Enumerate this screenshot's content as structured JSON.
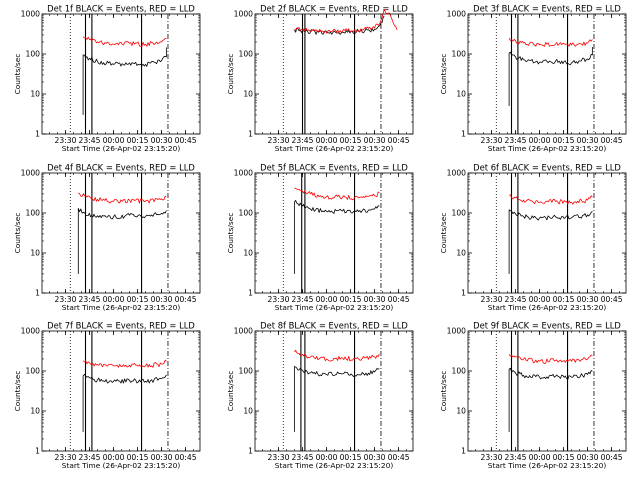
{
  "figure": {
    "colors": {
      "events": "#000000",
      "lld": "#ff0000",
      "axes": "#000000",
      "background": "#ffffff"
    },
    "y_axis": {
      "label": "Counts/sec",
      "scale": "log",
      "range": [
        1,
        1000
      ],
      "tick_labels": [
        "1",
        "10",
        "100",
        "1000"
      ]
    },
    "x_axis": {
      "label": "Start Time (26-Apr-02 23:15:20)",
      "tick_labels": [
        "23:30",
        "23:45",
        "00:00",
        "00:15",
        "00:30",
        "00:45"
      ]
    }
  },
  "chart_data": [
    {
      "type": "line",
      "title": "Det 1f BLACK = Events, RED = LLD",
      "xlabel": "Start Time (26-Apr-02 23:15:20)",
      "ylabel": "Counts/sec",
      "xlim": [
        "23:15:20",
        "00:54:00"
      ],
      "ylim": [
        1,
        1000
      ],
      "yscale": "log",
      "series": [
        {
          "name": "Events",
          "color": "#000000",
          "points": [
            [
              "23:41:00",
              3
            ],
            [
              "23:41:00",
              95
            ],
            [
              "23:45:00",
              78
            ],
            [
              "23:50:00",
              65
            ],
            [
              "00:00:00",
              55
            ],
            [
              "00:10:00",
              60
            ],
            [
              "00:20:00",
              55
            ],
            [
              "00:30:00",
              68
            ],
            [
              "00:33:00",
              85
            ],
            [
              "00:33:00",
              145
            ]
          ]
        },
        {
          "name": "LLD",
          "color": "#ff0000",
          "points": [
            [
              "23:41:00",
              270
            ],
            [
              "23:45:00",
              230
            ],
            [
              "23:50:00",
              200
            ],
            [
              "00:00:00",
              175
            ],
            [
              "00:10:00",
              185
            ],
            [
              "00:20:00",
              175
            ],
            [
              "00:30:00",
              200
            ],
            [
              "00:33:00",
              240
            ]
          ]
        }
      ],
      "vertical_markers": {
        "dotted": [
          "23:33:00"
        ],
        "solid": [
          "23:42:30",
          "23:46:30",
          "00:17:30"
        ],
        "dash_dot": [
          "00:34:00"
        ]
      }
    },
    {
      "type": "line",
      "title": "Det 2f BLACK = Events, RED = LLD",
      "xlabel": "Start Time (26-Apr-02 23:15:20)",
      "ylabel": "Counts/sec",
      "xlim": [
        "23:15:20",
        "00:54:00"
      ],
      "ylim": [
        1,
        1000
      ],
      "yscale": "log",
      "series": [
        {
          "name": "Events",
          "color": "#000000",
          "points": [
            [
              "23:40:00",
              400
            ],
            [
              "23:45:00",
              380
            ],
            [
              "23:55:00",
              350
            ],
            [
              "00:10:00",
              355
            ],
            [
              "00:20:00",
              370
            ],
            [
              "00:30:00",
              420
            ],
            [
              "00:34:00",
              600
            ],
            [
              "00:36:00",
              900
            ]
          ]
        },
        {
          "name": "LLD",
          "color": "#ff0000",
          "points": [
            [
              "23:40:00",
              420
            ],
            [
              "23:45:00",
              400
            ],
            [
              "23:55:00",
              370
            ],
            [
              "00:10:00",
              375
            ],
            [
              "00:20:00",
              390
            ],
            [
              "00:30:00",
              450
            ],
            [
              "00:34:00",
              700
            ],
            [
              "00:36:00",
              1300
            ],
            [
              "00:40:00",
              900
            ],
            [
              "00:44:00",
              400
            ]
          ]
        }
      ],
      "vertical_markers": {
        "dotted": [
          "23:33:00"
        ],
        "solid": [
          "23:45:00",
          "23:46:30",
          "00:17:30"
        ],
        "dash_dot": [
          "00:34:00"
        ]
      }
    },
    {
      "type": "line",
      "title": "Det 3f BLACK = Events, RED = LLD",
      "xlabel": "Start Time (26-Apr-02 23:15:20)",
      "ylabel": "Counts/sec",
      "xlim": [
        "23:15:20",
        "00:54:00"
      ],
      "ylim": [
        1,
        1000
      ],
      "yscale": "log",
      "series": [
        {
          "name": "Events",
          "color": "#000000",
          "points": [
            [
              "23:41:00",
              5
            ],
            [
              "23:41:00",
              105
            ],
            [
              "23:45:00",
              85
            ],
            [
              "23:50:00",
              72
            ],
            [
              "00:00:00",
              62
            ],
            [
              "00:10:00",
              66
            ],
            [
              "00:20:00",
              60
            ],
            [
              "00:30:00",
              75
            ],
            [
              "00:33:00",
              95
            ],
            [
              "00:33:00",
              150
            ]
          ]
        },
        {
          "name": "LLD",
          "color": "#ff0000",
          "points": [
            [
              "23:41:00",
              250
            ],
            [
              "23:45:00",
              215
            ],
            [
              "23:50:00",
              190
            ],
            [
              "00:00:00",
              170
            ],
            [
              "00:10:00",
              178
            ],
            [
              "00:20:00",
              168
            ],
            [
              "00:30:00",
              190
            ],
            [
              "00:33:00",
              230
            ]
          ]
        }
      ],
      "vertical_markers": {
        "dotted": [
          "23:33:00"
        ],
        "solid": [
          "23:42:30",
          "23:46:30",
          "00:17:30"
        ],
        "dash_dot": [
          "00:34:00"
        ]
      }
    },
    {
      "type": "line",
      "title": "Det 4f BLACK = Events, RED = LLD",
      "xlabel": "Start Time (26-Apr-02 23:15:20)",
      "ylabel": "Counts/sec",
      "xlim": [
        "23:15:20",
        "00:54:00"
      ],
      "ylim": [
        1,
        1000
      ],
      "yscale": "log",
      "series": [
        {
          "name": "Events",
          "color": "#000000",
          "points": [
            [
              "23:38:00",
              3
            ],
            [
              "23:38:00",
              130
            ],
            [
              "23:42:00",
              100
            ],
            [
              "23:50:00",
              85
            ],
            [
              "00:00:00",
              80
            ],
            [
              "00:10:00",
              88
            ],
            [
              "00:20:00",
              82
            ],
            [
              "00:30:00",
              98
            ],
            [
              "00:33:00",
              115
            ]
          ]
        },
        {
          "name": "LLD",
          "color": "#ff0000",
          "points": [
            [
              "23:38:00",
              320
            ],
            [
              "23:42:00",
              270
            ],
            [
              "23:50:00",
              220
            ],
            [
              "00:00:00",
              195
            ],
            [
              "00:10:00",
              210
            ],
            [
              "00:20:00",
              198
            ],
            [
              "00:30:00",
              225
            ],
            [
              "00:33:00",
              260
            ]
          ]
        }
      ],
      "vertical_markers": {
        "dotted": [
          "23:33:00"
        ],
        "solid": [
          "23:42:30",
          "23:46:30",
          "00:17:30"
        ],
        "dash_dot": [
          "00:34:00"
        ]
      }
    },
    {
      "type": "line",
      "title": "Det 5f BLACK = Events, RED = LLD",
      "xlabel": "Start Time (26-Apr-02 23:15:20)",
      "ylabel": "Counts/sec",
      "xlim": [
        "23:15:20",
        "00:54:00"
      ],
      "ylim": [
        1,
        1000
      ],
      "yscale": "log",
      "series": [
        {
          "name": "Events",
          "color": "#000000",
          "points": [
            [
              "23:40:00",
              3
            ],
            [
              "23:40:00",
              190
            ],
            [
              "23:45:00",
              150
            ],
            [
              "23:50:00",
              125
            ],
            [
              "00:00:00",
              110
            ],
            [
              "00:10:00",
              112
            ],
            [
              "00:20:00",
              108
            ],
            [
              "00:30:00",
              125
            ],
            [
              "00:33:00",
              150
            ]
          ]
        },
        {
          "name": "LLD",
          "color": "#ff0000",
          "points": [
            [
              "23:40:00",
              420
            ],
            [
              "23:45:00",
              350
            ],
            [
              "23:50:00",
              300
            ],
            [
              "00:00:00",
              255
            ],
            [
              "00:10:00",
              250
            ],
            [
              "00:20:00",
              240
            ],
            [
              "00:30:00",
              270
            ],
            [
              "00:33:00",
              320
            ]
          ]
        }
      ],
      "vertical_markers": {
        "dotted": [
          "23:33:00"
        ],
        "solid": [
          "23:44:30",
          "23:46:30",
          "00:17:30"
        ],
        "dash_dot": [
          "00:34:00"
        ]
      }
    },
    {
      "type": "line",
      "title": "Det 6f BLACK = Events, RED = LLD",
      "xlabel": "Start Time (26-Apr-02 23:15:20)",
      "ylabel": "Counts/sec",
      "xlim": [
        "23:15:20",
        "00:54:00"
      ],
      "ylim": [
        1,
        1000
      ],
      "yscale": "log",
      "series": [
        {
          "name": "Events",
          "color": "#000000",
          "points": [
            [
              "23:41:00",
              3
            ],
            [
              "23:41:00",
              120
            ],
            [
              "23:45:00",
              95
            ],
            [
              "23:50:00",
              82
            ],
            [
              "00:00:00",
              75
            ],
            [
              "00:10:00",
              80
            ],
            [
              "00:20:00",
              76
            ],
            [
              "00:30:00",
              90
            ],
            [
              "00:33:00",
              110
            ]
          ]
        },
        {
          "name": "LLD",
          "color": "#ff0000",
          "points": [
            [
              "23:41:00",
              280
            ],
            [
              "23:45:00",
              240
            ],
            [
              "23:50:00",
              210
            ],
            [
              "00:00:00",
              185
            ],
            [
              "00:10:00",
              195
            ],
            [
              "00:20:00",
              185
            ],
            [
              "00:30:00",
              210
            ],
            [
              "00:33:00",
              250
            ]
          ]
        }
      ],
      "vertical_markers": {
        "dotted": [
          "23:33:00"
        ],
        "solid": [
          "23:42:30",
          "23:46:30",
          "00:17:30"
        ],
        "dash_dot": [
          "00:34:00"
        ]
      }
    },
    {
      "type": "line",
      "title": "Det 7f BLACK = Events, RED = LLD",
      "xlabel": "Start Time (26-Apr-02 23:15:20)",
      "ylabel": "Counts/sec",
      "xlim": [
        "23:15:20",
        "00:54:00"
      ],
      "ylim": [
        1,
        1000
      ],
      "yscale": "log",
      "series": [
        {
          "name": "Events",
          "color": "#000000",
          "points": [
            [
              "23:41:00",
              3
            ],
            [
              "23:41:00",
              75
            ],
            [
              "23:45:00",
              68
            ],
            [
              "23:50:00",
              60
            ],
            [
              "00:00:00",
              55
            ],
            [
              "00:10:00",
              58
            ],
            [
              "00:20:00",
              55
            ],
            [
              "00:30:00",
              65
            ],
            [
              "00:33:00",
              80
            ]
          ]
        },
        {
          "name": "LLD",
          "color": "#ff0000",
          "points": [
            [
              "23:41:00",
              180
            ],
            [
              "23:45:00",
              160
            ],
            [
              "23:50:00",
              145
            ],
            [
              "00:00:00",
              135
            ],
            [
              "00:10:00",
              140
            ],
            [
              "00:20:00",
              135
            ],
            [
              "00:30:00",
              150
            ],
            [
              "00:33:00",
              175
            ]
          ]
        }
      ],
      "vertical_markers": {
        "dotted": [
          "23:33:00"
        ],
        "solid": [
          "23:42:30",
          "23:46:30",
          "00:17:30"
        ],
        "dash_dot": [
          "00:34:00"
        ]
      }
    },
    {
      "type": "line",
      "title": "Det 8f BLACK = Events, RED = LLD",
      "xlabel": "Start Time (26-Apr-02 23:15:20)",
      "ylabel": "Counts/sec",
      "xlim": [
        "23:15:20",
        "00:54:00"
      ],
      "ylim": [
        1,
        1000
      ],
      "yscale": "log",
      "series": [
        {
          "name": "Events",
          "color": "#000000",
          "points": [
            [
              "23:40:00",
              3
            ],
            [
              "23:40:00",
              130
            ],
            [
              "23:45:00",
              105
            ],
            [
              "23:50:00",
              90
            ],
            [
              "00:00:00",
              82
            ],
            [
              "00:10:00",
              85
            ],
            [
              "00:20:00",
              80
            ],
            [
              "00:30:00",
              95
            ],
            [
              "00:33:00",
              115
            ]
          ]
        },
        {
          "name": "LLD",
          "color": "#ff0000",
          "points": [
            [
              "23:40:00",
              300
            ],
            [
              "23:45:00",
              260
            ],
            [
              "23:50:00",
              225
            ],
            [
              "00:00:00",
              200
            ],
            [
              "00:10:00",
              210
            ],
            [
              "00:20:00",
              200
            ],
            [
              "00:30:00",
              225
            ],
            [
              "00:33:00",
              270
            ]
          ]
        }
      ],
      "vertical_markers": {
        "dotted": [
          "23:33:00"
        ],
        "solid": [
          "23:44:00",
          "23:46:30",
          "00:17:30"
        ],
        "dash_dot": [
          "00:34:00"
        ]
      }
    },
    {
      "type": "line",
      "title": "Det 9f BLACK = Events, RED = LLD",
      "xlabel": "Start Time (26-Apr-02 23:15:20)",
      "ylabel": "Counts/sec",
      "xlim": [
        "23:15:20",
        "00:54:00"
      ],
      "ylim": [
        1,
        1000
      ],
      "yscale": "log",
      "series": [
        {
          "name": "Events",
          "color": "#000000",
          "points": [
            [
              "23:41:00",
              3
            ],
            [
              "23:41:00",
              110
            ],
            [
              "23:45:00",
              90
            ],
            [
              "23:50:00",
              78
            ],
            [
              "00:00:00",
              70
            ],
            [
              "00:10:00",
              74
            ],
            [
              "00:20:00",
              70
            ],
            [
              "00:30:00",
              82
            ],
            [
              "00:33:00",
              100
            ]
          ]
        },
        {
          "name": "LLD",
          "color": "#ff0000",
          "points": [
            [
              "23:41:00",
              260
            ],
            [
              "23:45:00",
              225
            ],
            [
              "23:50:00",
              198
            ],
            [
              "00:00:00",
              175
            ],
            [
              "00:10:00",
              185
            ],
            [
              "00:20:00",
              175
            ],
            [
              "00:30:00",
              198
            ],
            [
              "00:33:00",
              240
            ]
          ]
        }
      ],
      "vertical_markers": {
        "dotted": [
          "23:33:00"
        ],
        "solid": [
          "23:42:30",
          "23:46:30",
          "00:17:30"
        ],
        "dash_dot": [
          "00:34:00"
        ]
      }
    }
  ]
}
